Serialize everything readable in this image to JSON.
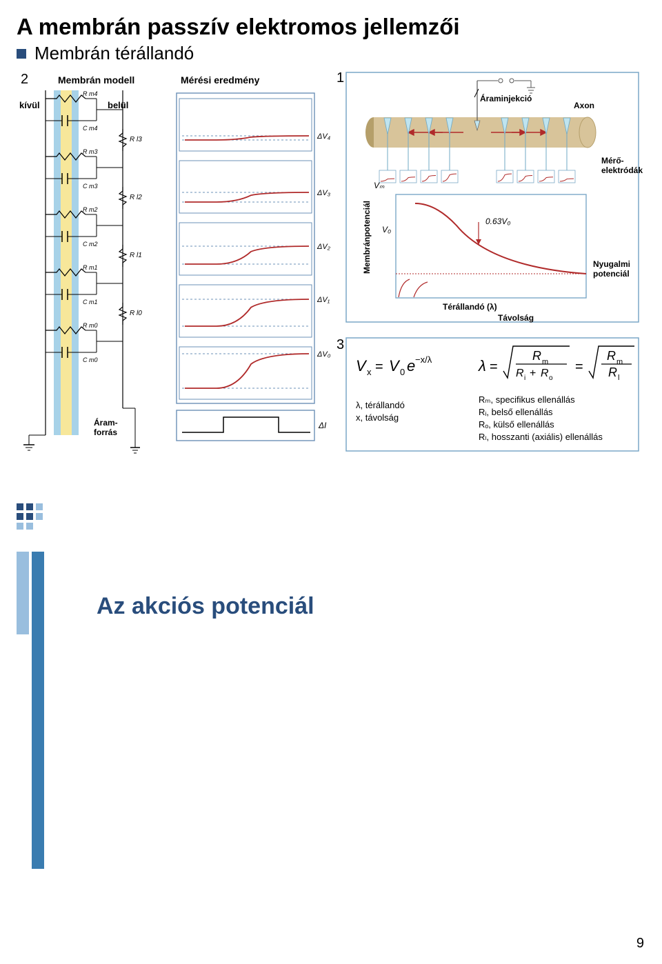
{
  "title": "A membrán passzív elektromos jellemzői",
  "subtitle": "Membrán térállandó",
  "badges": {
    "b1": "1",
    "b2": "2",
    "b3": "3"
  },
  "panel2": {
    "model_label": "Membrán modell",
    "result_label": "Mérési eredmény",
    "outside": "kívül",
    "inside": "belül",
    "source": "Áram-\nforrás",
    "r_labels": [
      "R m4",
      "R m3",
      "R m2",
      "R m1",
      "R m0"
    ],
    "c_labels": [
      "C m4",
      "C m3",
      "C m2",
      "C m1",
      "C m0"
    ],
    "rl_labels": [
      "R l3",
      "R l2",
      "R l1",
      "R l0"
    ],
    "dv_labels": [
      "ΔV₄",
      "ΔV₃",
      "ΔV₂",
      "ΔV₁",
      "ΔV₀"
    ],
    "di_label": "ΔI",
    "colors": {
      "membrane_yellow": "#f7e79a",
      "membrane_blue": "#a7d2e8",
      "wave_red": "#b02a2a",
      "wave_dash": "#6b90b7",
      "border": "#6b90b7"
    }
  },
  "panel1": {
    "injection": "Áraminjekció",
    "axon": "Axon",
    "electrodes": "Mérő-\nelektródák",
    "yaxis": "Membránpotenciál",
    "vm": "Vₘ",
    "v0": "V₀",
    "v063": "0.63V₀",
    "lambda_label": "Térállandó (λ)",
    "xaxis": "Távolság",
    "rest": "Nyugalmi\npotenciál",
    "colors": {
      "cylinder": "#d8c49a",
      "cylinder_dark": "#b59f6a",
      "glass": "#bfe4ef",
      "frame": "#7aa7c7",
      "decay": "#b02a2a",
      "dotted": "#b02a2a"
    }
  },
  "panel3": {
    "eq_vx": "Vₓ = V₀e⁻ˣ/λ",
    "eq_lambda_img": "λ = √(Rₘ/(Rᵢ+Rₒ)) = √(Rₘ/Rₗ)",
    "lambda_def": "λ, térállandó",
    "x_def": "x, távolság",
    "rm_def": "Rₘ, specifikus ellenállás",
    "ri_def": "Rᵢ, belső ellenállás",
    "ro_def": "Rₒ, külső ellenállás",
    "rl_def": "Rₗ, hosszanti (axiális) ellenállás"
  },
  "slide2_title": "Az akciós potenciál",
  "page_number": "9"
}
